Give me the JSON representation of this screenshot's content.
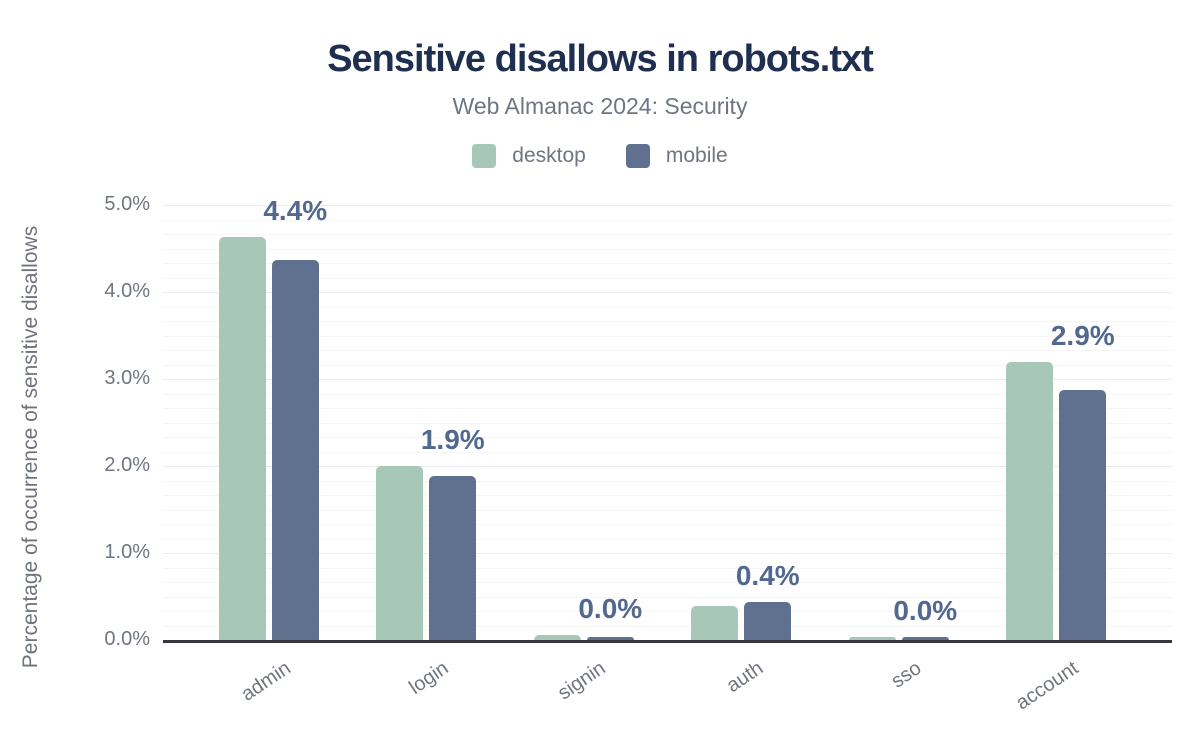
{
  "title": "Sensitive disallows in robots.txt",
  "subtitle": "Web Almanac 2024: Security",
  "legend": {
    "desktop_label": "desktop",
    "mobile_label": "mobile"
  },
  "colors": {
    "desktop": "#a7c8b8",
    "mobile": "#5f718e",
    "title": "#1f2f50",
    "subtitle": "#6e7681",
    "annotation": "#51688f",
    "axis_text": "#6f7680",
    "axis_line": "#36363c",
    "grid_major": "#ebebee",
    "grid_minor": "#f6f5f6",
    "background": "#ffffff"
  },
  "chart_data": {
    "type": "bar",
    "title": "Sensitive disallows in robots.txt",
    "subtitle": "Web Almanac 2024: Security",
    "categories": [
      "admin",
      "login",
      "signin",
      "auth",
      "sso",
      "account"
    ],
    "series": [
      {
        "name": "desktop",
        "values": [
          4.63,
          2.0,
          0.06,
          0.39,
          0.03,
          3.2
        ]
      },
      {
        "name": "mobile",
        "values": [
          4.37,
          1.88,
          0.03,
          0.44,
          0.03,
          2.87
        ]
      }
    ],
    "annotations": [
      "4.4%",
      "1.9%",
      "0.0%",
      "0.4%",
      "0.0%",
      "2.9%"
    ],
    "annotation_series": "mobile",
    "xlabel": "",
    "ylabel": "Percentage of occurrence of sensitive disallows",
    "y_ticks": [
      "5.0%",
      "4.0%",
      "3.0%",
      "2.0%",
      "1.0%",
      "0.0%"
    ],
    "ylim": [
      0,
      5
    ],
    "grid": true,
    "minor_grid_subdivisions": 6,
    "legend_position": "top"
  }
}
